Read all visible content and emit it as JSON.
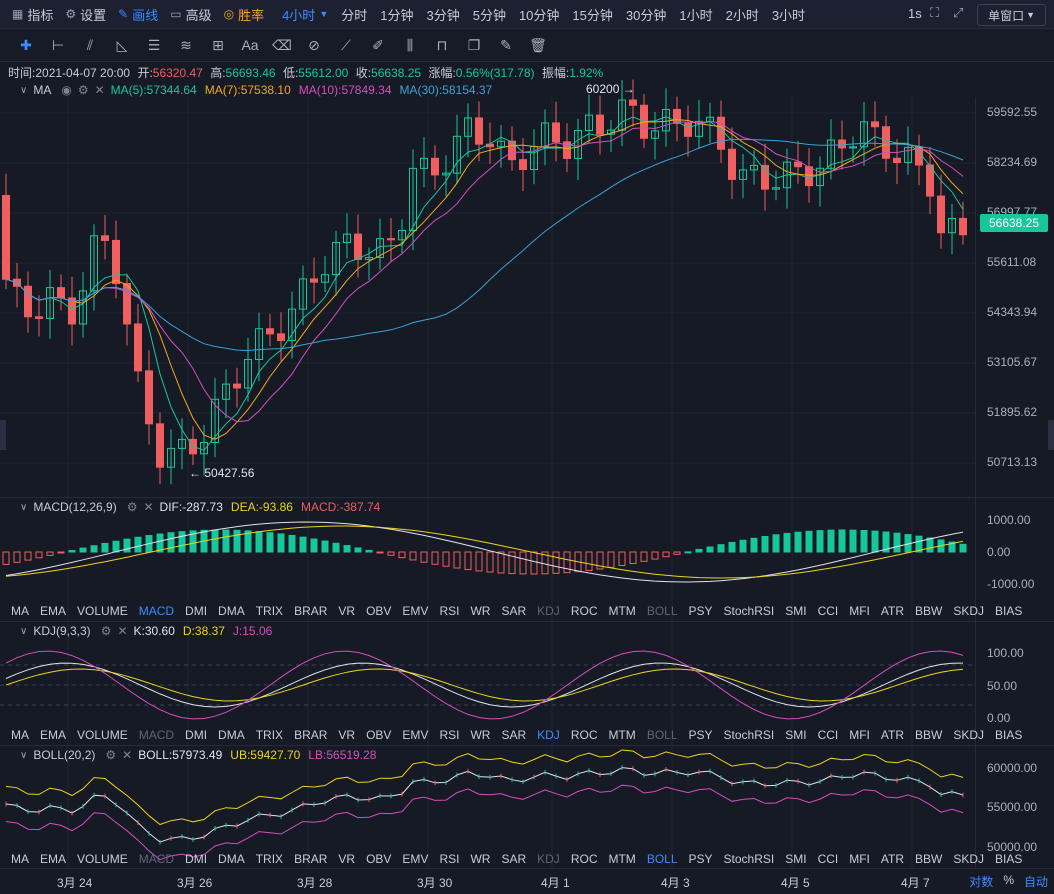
{
  "topbar": {
    "items": [
      {
        "icon": "grid-icon",
        "label": "指标"
      },
      {
        "icon": "gear-icon",
        "label": "设置"
      },
      {
        "icon": "pencil-icon",
        "label": "画线"
      },
      {
        "icon": "chart-icon",
        "label": "高级"
      },
      {
        "icon": "trophy-icon",
        "label": "胜率"
      }
    ],
    "active_interval": "4小时",
    "intervals": [
      "分时",
      "1分钟",
      "3分钟",
      "5分钟",
      "10分钟",
      "15分钟",
      "30分钟",
      "1小时",
      "2小时",
      "3小时"
    ],
    "timer": "1s",
    "window_button": "单窗口"
  },
  "toolbar": {
    "tools": [
      "crosshair-icon",
      "horizontal-line-icon",
      "parallel-channel-icon",
      "fib-icon",
      "fib-levels-icon",
      "wave-icon",
      "measure-icon",
      "text-icon",
      "eraser-icon",
      "magnet-icon",
      "ruler-icon",
      "brush-icon",
      "candle-type-icon",
      "lock-icon",
      "copy-icon",
      "edit-icon",
      "trash-icon"
    ],
    "text_tool": "Aa"
  },
  "info": {
    "time_label": "时间:",
    "time": "2021-04-07 20:00",
    "open_label": "开:",
    "open": "56320.47",
    "high_label": "高:",
    "high": "56693.46",
    "low_label": "低:",
    "low": "55612.00",
    "close_label": "收:",
    "close": "56638.25",
    "change_label": "涨幅:",
    "change": "0.56%(317.78)",
    "amp_label": "振幅:",
    "amp": "1.92%"
  },
  "main": {
    "indicator": "MA",
    "ma5": "MA(5):57344.64",
    "ma7": "MA(7):57538.10",
    "ma10": "MA(10):57849.34",
    "ma30": "MA(30):58154.37",
    "high_marker": "60200",
    "low_marker": "50427.56",
    "current_price": "56638.25",
    "axis": [
      "59592.55",
      "58234.69",
      "56997.77",
      "55611.08",
      "54343.94",
      "53105.67",
      "51895.62",
      "50713.13"
    ]
  },
  "macd": {
    "name": "MACD(12,26,9)",
    "dif": "DIF:-287.73",
    "dea": "DEA:-93.86",
    "macd": "MACD:-387.74",
    "axis": [
      "1000.00",
      "0.00",
      "-1000.00"
    ]
  },
  "kdj": {
    "name": "KDJ(9,3,3)",
    "k": "K:30.60",
    "d": "D:38.37",
    "j": "J:15.06",
    "axis": [
      "100.00",
      "50.00",
      "0.00"
    ]
  },
  "boll": {
    "name": "BOLL(20,2)",
    "boll": "BOLL:57973.49",
    "ub": "UB:59427.70",
    "lb": "LB:56519.28",
    "axis": [
      "60000.00",
      "55000.00",
      "50000.00"
    ]
  },
  "indicator_tabs": [
    "MA",
    "EMA",
    "VOLUME",
    "MACD",
    "DMI",
    "DMA",
    "TRIX",
    "BRAR",
    "VR",
    "OBV",
    "EMV",
    "RSI",
    "WR",
    "SAR",
    "KDJ",
    "ROC",
    "MTM",
    "BOLL",
    "PSY",
    "StochRSI",
    "SMI",
    "CCI",
    "MFI",
    "ATR",
    "BBW",
    "SKDJ",
    "BIAS"
  ],
  "xaxis": {
    "dates": [
      "3月 24",
      "3月 26",
      "3月 28",
      "3月 30",
      "4月 1",
      "4月 3",
      "4月 5",
      "4月 7"
    ],
    "log_label": "对数",
    "pct_label": "%",
    "auto_label": "自动"
  },
  "colors": {
    "up": "#16c79a",
    "down": "#ef5f5f",
    "ma5": "#16c79a",
    "ma7": "#f0a81c",
    "ma10": "#d64dbf",
    "ma30": "#3aa2d6",
    "accent": "#3b8cff"
  }
}
